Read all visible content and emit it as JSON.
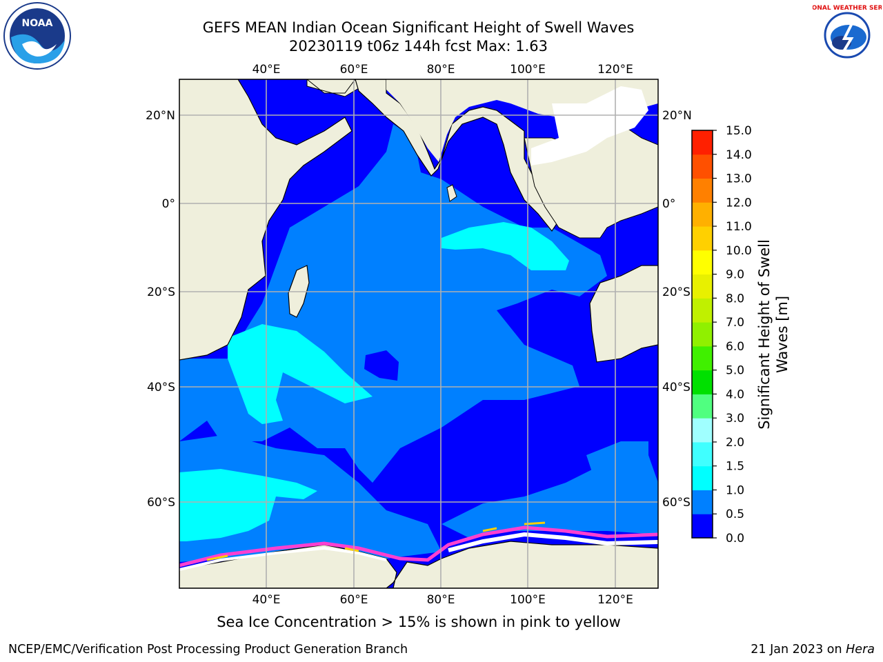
{
  "title": {
    "line1": "GEFS MEAN Indian Ocean Significant Height of Swell Waves",
    "line2": "20230119 t06z 144h fcst   Max: 1.63"
  },
  "caption": "Sea Ice Concentration > 15% is shown in pink to yellow",
  "footer": {
    "left": "NCEP/EMC/Verification Post Processing Product Generation Branch",
    "right_prefix": "21 Jan 2023 on ",
    "right_host": "Hera"
  },
  "logos": {
    "noaa_text": "NOAA",
    "nws_text": "NATIONAL WEATHER SERVICE"
  },
  "map": {
    "lon_labels": [
      "40°E",
      "60°E",
      "80°E",
      "100°E",
      "120°E"
    ],
    "lat_labels": [
      "20°N",
      "0°",
      "20°S",
      "40°S",
      "60°S"
    ],
    "ocean_color": "#0000ff",
    "land_color": "#efefdc",
    "sea_ice_color": "#ffffff"
  },
  "colorbar": {
    "title_line1": "Significant Height of Swell",
    "title_line2": "Waves [m]",
    "ticks": [
      "0.0",
      "0.5",
      "1.0",
      "1.5",
      "2.0",
      "3.0",
      "4.0",
      "5.0",
      "6.0",
      "7.0",
      "8.0",
      "9.0",
      "10.0",
      "11.0",
      "12.0",
      "13.0",
      "14.0",
      "15.0"
    ],
    "colors": [
      "#0000ff",
      "#0080ff",
      "#00ffff",
      "#40ffff",
      "#a0ffff",
      "#50ff80",
      "#00e000",
      "#40f000",
      "#90f000",
      "#c0f000",
      "#e8f000",
      "#ffff00",
      "#ffd000",
      "#ffb000",
      "#ff8000",
      "#ff5000",
      "#ff2000"
    ]
  }
}
